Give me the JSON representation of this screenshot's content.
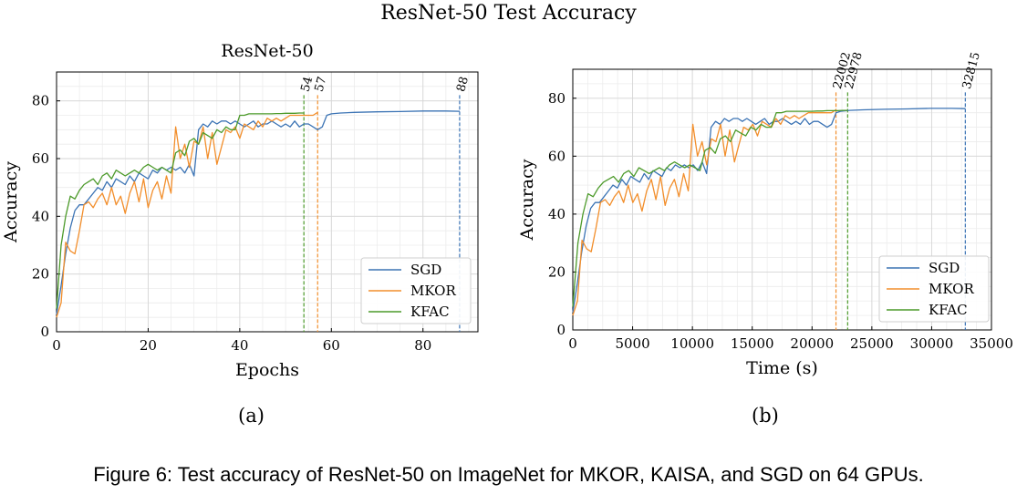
{
  "figure": {
    "suptitle": "ResNet-50 Test Accuracy",
    "caption": "Figure 6: Test accuracy of ResNet-50 on ImageNet for MKOR, KAISA, and SGD on 64 GPUs.",
    "colors": {
      "SGD": "#3b73b4",
      "MKOR": "#f28e2b",
      "KFAC": "#4c9a2a"
    }
  },
  "chart_data": [
    {
      "type": "line",
      "panel_label": "(a)",
      "title": "ResNet-50",
      "xlabel": "Epochs",
      "ylabel": "Accuracy",
      "xlim": [
        0,
        92
      ],
      "ylim": [
        0,
        90
      ],
      "xticks": [
        0,
        20,
        40,
        60,
        80
      ],
      "yticks": [
        0,
        20,
        40,
        60,
        80
      ],
      "grid": true,
      "legend_position": "bottom-right",
      "series": [
        {
          "name": "SGD",
          "x": [
            0,
            1,
            2,
            3,
            4,
            5,
            6,
            7,
            8,
            9,
            10,
            11,
            12,
            13,
            14,
            15,
            16,
            17,
            18,
            19,
            20,
            21,
            22,
            23,
            24,
            25,
            26,
            27,
            28,
            29,
            30,
            31,
            32,
            33,
            34,
            35,
            36,
            37,
            38,
            39,
            40,
            41,
            42,
            43,
            44,
            45,
            46,
            47,
            48,
            49,
            50,
            51,
            52,
            53,
            54,
            55,
            56,
            57,
            58,
            59,
            60,
            62,
            65,
            70,
            75,
            80,
            85,
            88
          ],
          "y": [
            6,
            16,
            27,
            36,
            42,
            44,
            44,
            46,
            48,
            50,
            49,
            52,
            50,
            53,
            52,
            51,
            54,
            52,
            55,
            54,
            53,
            56,
            55,
            57,
            56,
            57,
            56,
            57,
            55,
            58,
            54,
            70,
            72,
            71,
            73,
            72,
            73,
            73,
            72,
            73,
            72,
            71,
            72,
            73,
            71,
            72,
            72,
            73,
            72,
            71,
            72,
            71,
            73,
            71,
            72,
            72,
            71,
            70,
            71,
            75,
            75.5,
            75.8,
            76,
            76.2,
            76.3,
            76.5,
            76.5,
            76.4
          ]
        },
        {
          "name": "MKOR",
          "x": [
            0,
            1,
            2,
            3,
            4,
            5,
            6,
            7,
            8,
            9,
            10,
            11,
            12,
            13,
            14,
            15,
            16,
            17,
            18,
            19,
            20,
            21,
            22,
            23,
            24,
            25,
            26,
            27,
            28,
            29,
            30,
            31,
            32,
            33,
            34,
            35,
            36,
            37,
            38,
            39,
            40,
            41,
            42,
            43,
            44,
            45,
            46,
            47,
            48,
            49,
            50,
            51,
            52,
            53,
            54,
            55,
            56,
            57
          ],
          "y": [
            5,
            10,
            31,
            28,
            27,
            35,
            44,
            45,
            43,
            46,
            48,
            44,
            50,
            44,
            47,
            41,
            48,
            52,
            45,
            53,
            43,
            49,
            52,
            46,
            54,
            48,
            71,
            60,
            65,
            57,
            66,
            65,
            71,
            60,
            69,
            58,
            64,
            70,
            69,
            71,
            67,
            72,
            71,
            70,
            73,
            71,
            74,
            73,
            74,
            73,
            74,
            75,
            75,
            75,
            75,
            75,
            75,
            76
          ]
        },
        {
          "name": "KFAC",
          "x": [
            0,
            1,
            2,
            3,
            4,
            5,
            6,
            7,
            8,
            9,
            10,
            11,
            12,
            13,
            14,
            15,
            16,
            17,
            18,
            19,
            20,
            21,
            22,
            23,
            24,
            25,
            26,
            27,
            28,
            29,
            30,
            31,
            32,
            33,
            34,
            35,
            36,
            37,
            38,
            39,
            40,
            41,
            42,
            43,
            44,
            45,
            46,
            47,
            48,
            49,
            50,
            51,
            52,
            53,
            54
          ],
          "y": [
            8,
            30,
            40,
            47,
            46,
            49,
            51,
            52,
            53,
            51,
            54,
            55,
            53,
            56,
            55,
            54,
            55,
            56,
            55,
            57,
            58,
            57,
            56,
            57,
            56,
            55,
            62,
            63,
            61,
            66,
            67,
            65,
            69,
            68,
            67,
            70,
            69,
            71,
            70,
            70,
            75,
            75,
            75.5,
            75.5,
            75.5,
            75.5,
            75.5,
            75.5,
            75.6,
            75.6,
            75.7,
            75.7,
            75.7,
            75.8,
            75.8
          ]
        }
      ],
      "markers": [
        {
          "label": "54",
          "x": 54,
          "series": "KFAC"
        },
        {
          "label": "57",
          "x": 57,
          "series": "MKOR"
        },
        {
          "label": "88",
          "x": 88,
          "series": "SGD"
        }
      ]
    },
    {
      "type": "line",
      "panel_label": "(b)",
      "title": "",
      "xlabel": "Time (s)",
      "ylabel": "Accuracy",
      "xlim": [
        0,
        35000
      ],
      "ylim": [
        0,
        90
      ],
      "xticks": [
        0,
        5000,
        10000,
        15000,
        20000,
        25000,
        30000,
        35000
      ],
      "yticks": [
        0,
        20,
        40,
        60,
        80
      ],
      "grid": true,
      "legend_position": "bottom-right",
      "series": [
        {
          "name": "SGD",
          "x": [
            0,
            373,
            746,
            1119,
            1492,
            1865,
            2238,
            2611,
            2984,
            3357,
            3730,
            4103,
            4476,
            4849,
            5222,
            5595,
            5968,
            6341,
            6714,
            7087,
            7460,
            7833,
            8206,
            8579,
            8952,
            9325,
            9698,
            10071,
            10444,
            10817,
            11190,
            11563,
            11936,
            12309,
            12682,
            13055,
            13428,
            13801,
            14174,
            14547,
            14920,
            15293,
            15666,
            16039,
            16412,
            16785,
            17158,
            17531,
            17904,
            18277,
            18650,
            19023,
            19396,
            19769,
            20142,
            20515,
            20888,
            21261,
            21634,
            22007,
            22380,
            23126,
            24245,
            26110,
            27975,
            29840,
            31705,
            32815
          ],
          "y": [
            6,
            16,
            27,
            36,
            42,
            44,
            44,
            46,
            48,
            50,
            49,
            52,
            50,
            53,
            52,
            51,
            54,
            52,
            55,
            54,
            53,
            56,
            55,
            57,
            56,
            57,
            56,
            57,
            55,
            58,
            54,
            70,
            72,
            71,
            73,
            72,
            73,
            73,
            72,
            73,
            72,
            71,
            72,
            73,
            71,
            72,
            72,
            73,
            72,
            71,
            72,
            71,
            73,
            71,
            72,
            72,
            71,
            70,
            71,
            75,
            75.5,
            75.8,
            76,
            76.2,
            76.3,
            76.5,
            76.5,
            76.4
          ]
        },
        {
          "name": "MKOR",
          "x": [
            0,
            386,
            772,
            1158,
            1544,
            1930,
            2316,
            2702,
            3088,
            3474,
            3860,
            4246,
            4632,
            5018,
            5404,
            5790,
            6176,
            6562,
            6948,
            7334,
            7720,
            8106,
            8492,
            8878,
            9264,
            9650,
            10036,
            10422,
            10808,
            11194,
            11580,
            11966,
            12352,
            12738,
            13124,
            13510,
            13896,
            14282,
            14668,
            15054,
            15440,
            15826,
            16212,
            16598,
            16984,
            17370,
            17756,
            18142,
            18528,
            18914,
            19300,
            19686,
            20072,
            20458,
            20844,
            21230,
            21616,
            22002
          ],
          "y": [
            5,
            10,
            31,
            28,
            27,
            35,
            44,
            45,
            43,
            46,
            48,
            44,
            50,
            44,
            47,
            41,
            48,
            52,
            45,
            53,
            43,
            49,
            52,
            46,
            54,
            48,
            71,
            60,
            65,
            57,
            66,
            65,
            71,
            60,
            69,
            58,
            64,
            70,
            69,
            71,
            67,
            72,
            71,
            70,
            73,
            71,
            74,
            73,
            74,
            73,
            74,
            75,
            75,
            75,
            75,
            75,
            75,
            76
          ]
        },
        {
          "name": "KFAC",
          "x": [
            0,
            425,
            850,
            1276,
            1701,
            2126,
            2551,
            2977,
            3402,
            3827,
            4252,
            4678,
            5103,
            5528,
            5953,
            6379,
            6804,
            7229,
            7654,
            8079,
            8505,
            8930,
            9355,
            9780,
            10206,
            10631,
            11056,
            11481,
            11907,
            12332,
            12757,
            13182,
            13608,
            14033,
            14458,
            14883,
            15308,
            15734,
            16159,
            16584,
            17009,
            17435,
            17860,
            18285,
            18710,
            19136,
            19561,
            19986,
            20411,
            20837,
            21262,
            21687,
            22112,
            22538,
            22978
          ],
          "y": [
            8,
            30,
            40,
            47,
            46,
            49,
            51,
            52,
            53,
            51,
            54,
            55,
            53,
            56,
            55,
            54,
            55,
            56,
            55,
            57,
            58,
            57,
            56,
            57,
            56,
            55,
            62,
            63,
            61,
            66,
            67,
            65,
            69,
            68,
            67,
            70,
            69,
            71,
            70,
            70,
            75,
            75,
            75.5,
            75.5,
            75.5,
            75.5,
            75.5,
            75.5,
            75.6,
            75.6,
            75.7,
            75.7,
            75.7,
            75.8,
            75.8
          ]
        }
      ],
      "markers": [
        {
          "label": "22002",
          "x": 22002,
          "series": "MKOR"
        },
        {
          "label": "22978",
          "x": 22978,
          "series": "KFAC"
        },
        {
          "label": "32815",
          "x": 32815,
          "series": "SGD"
        }
      ]
    }
  ]
}
